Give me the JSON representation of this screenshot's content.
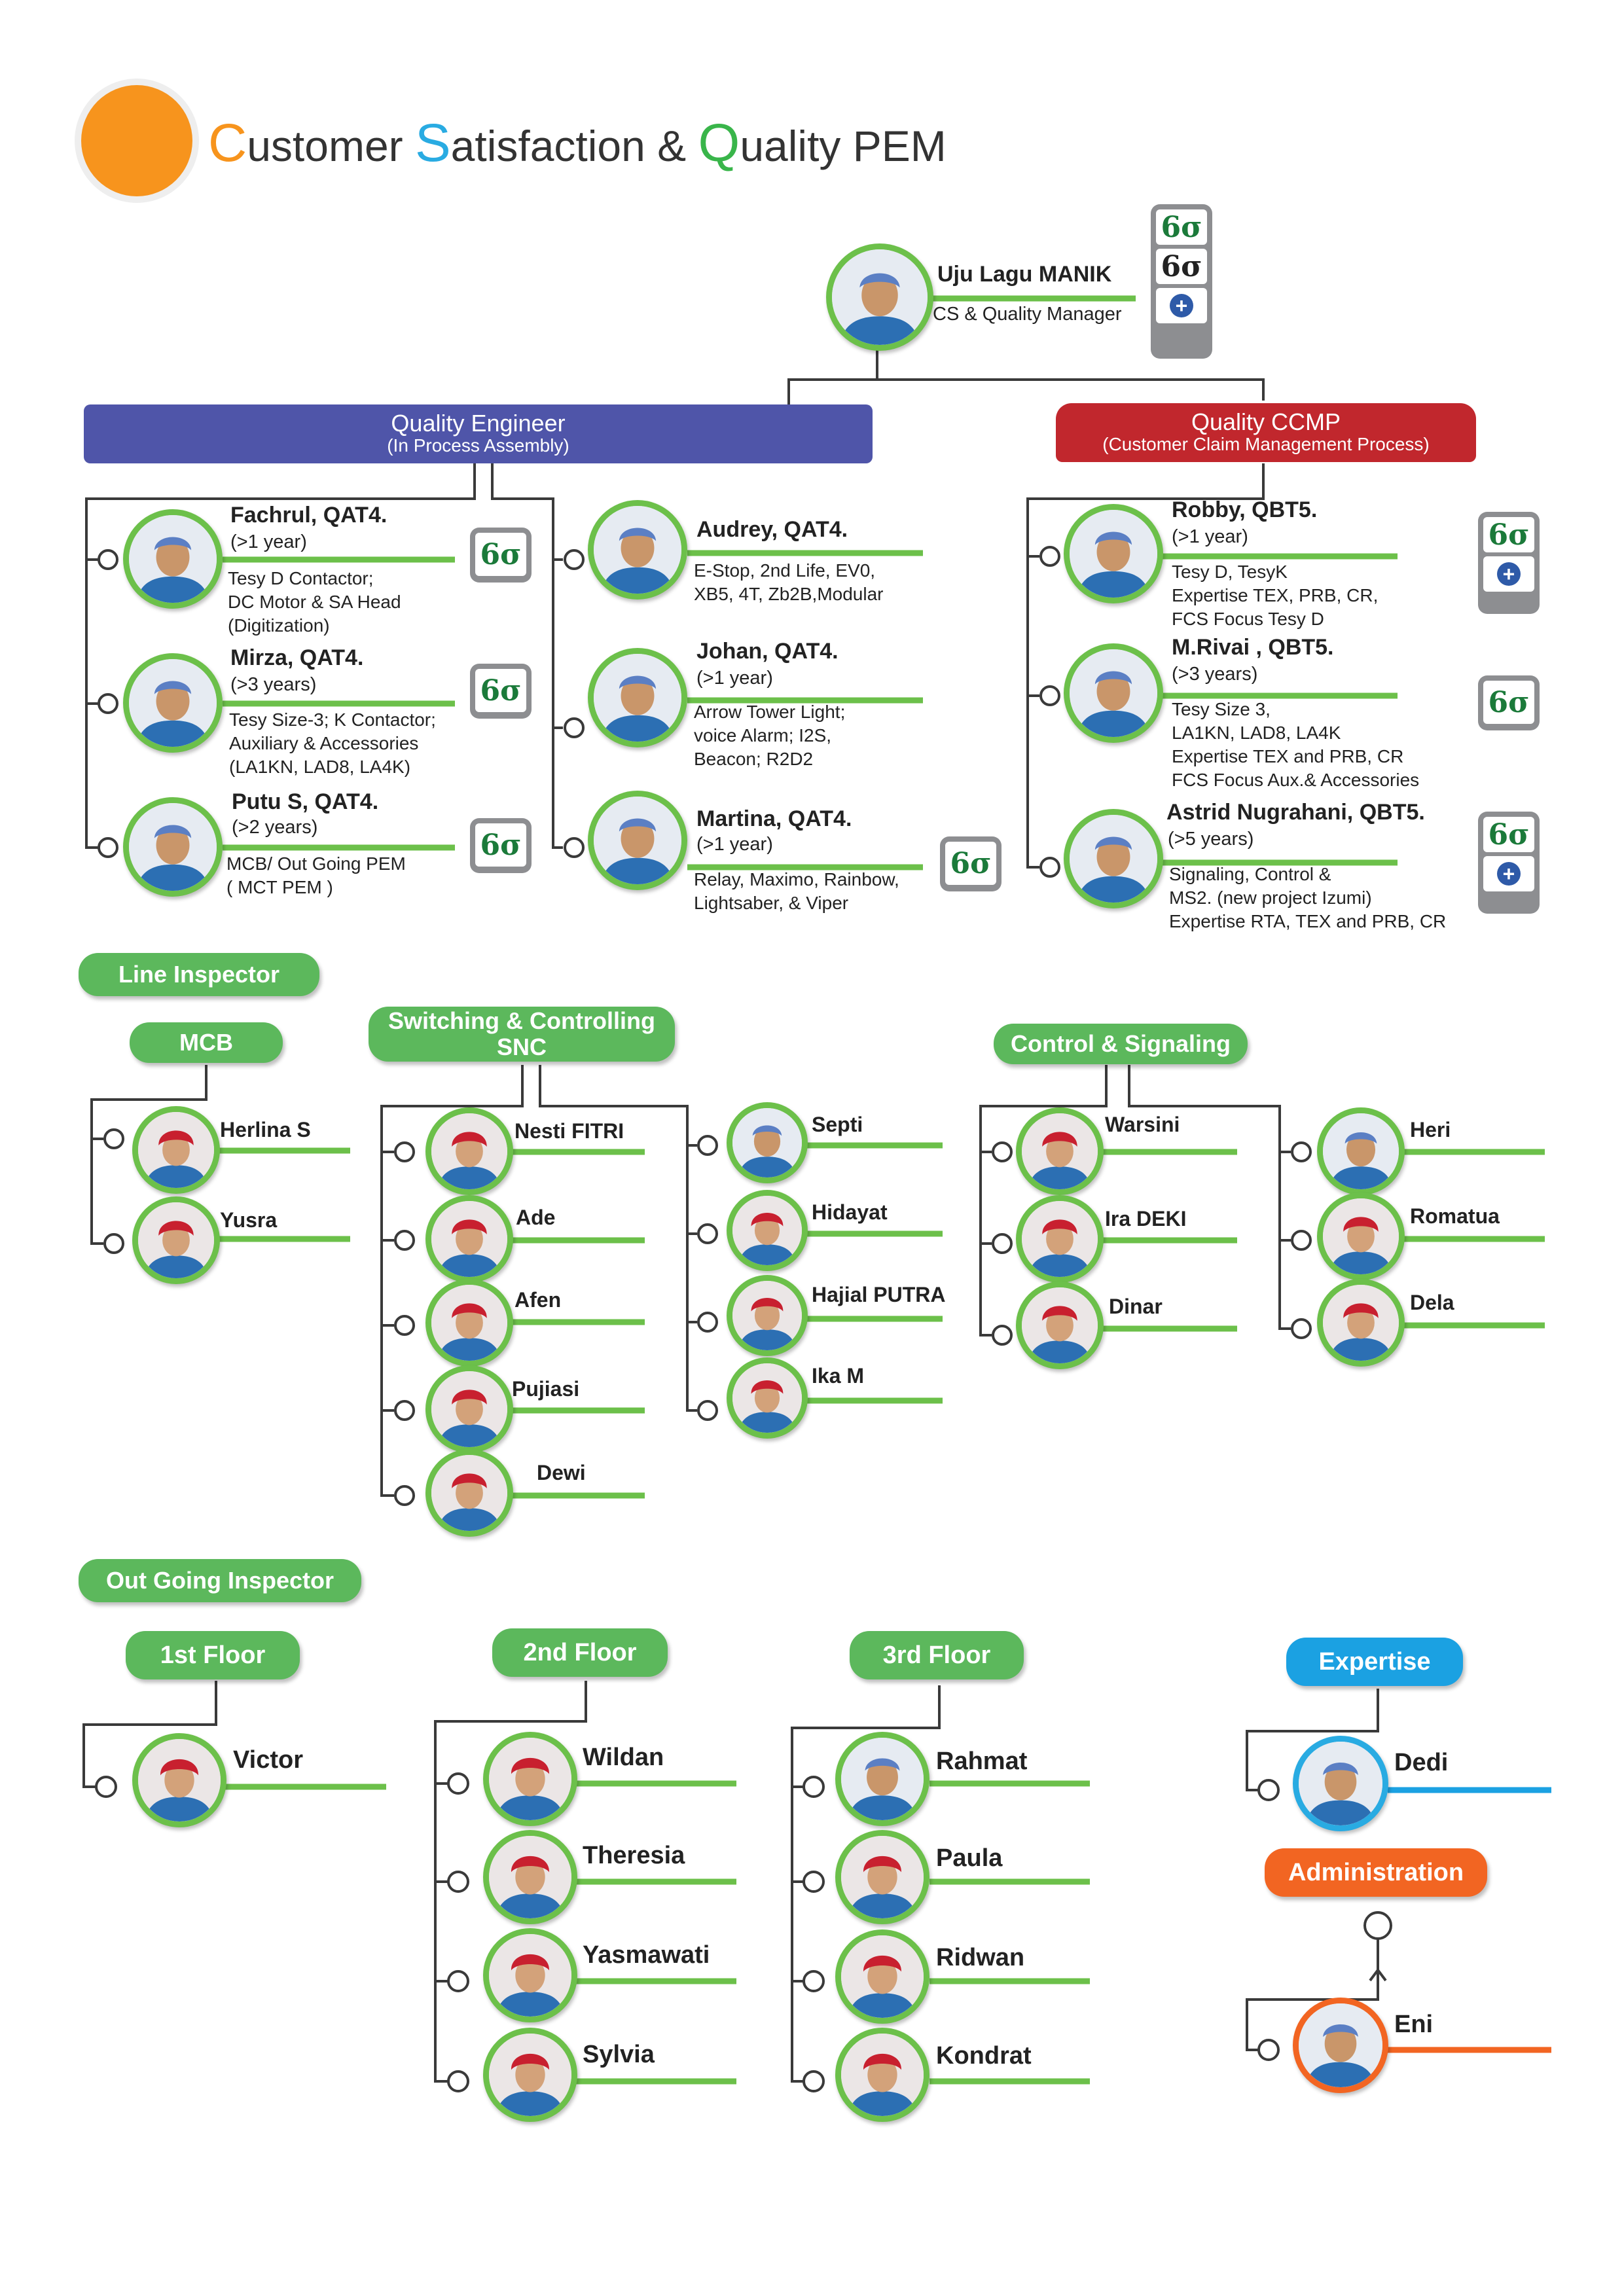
{
  "header": {
    "c1": "C",
    "t1": "ustomer ",
    "c2": "S",
    "t2": "atisfaction & ",
    "c3": "Q",
    "t3": "uality PEM"
  },
  "colors": {
    "green": "#6cc04a",
    "blue_bar": "#4f55a9",
    "red_bar": "#c1272d",
    "orange": "#f7941d",
    "sky": "#1ba1e2",
    "admin": "#f26522"
  },
  "badge": {
    "six_sigma": "6σ"
  },
  "manager": {
    "name": "Uju Lagu MANIK",
    "role": "CS & Quality Manager"
  },
  "quality_engineer": {
    "title": "Quality Engineer",
    "subtitle": "(In Process Assembly)",
    "members": [
      {
        "name": "Fachrul, QAT4.",
        "years": "(>1 year)",
        "desc": [
          "Tesy D Contactor;",
          "DC Motor & SA Head",
          "(Digitization)"
        ]
      },
      {
        "name": "Mirza, QAT4.",
        "years": "(>3 years)",
        "desc": [
          "Tesy Size-3; K Contactor;",
          "Auxiliary & Accessories",
          "(LA1KN, LAD8, LA4K)"
        ]
      },
      {
        "name": "Putu S, QAT4.",
        "years": "(>2 years)",
        "desc": [
          "MCB/ Out Going PEM",
          "( MCT PEM )"
        ]
      },
      {
        "name": "Audrey, QAT4.",
        "years": "",
        "desc": [
          "E-Stop, 2nd Life, EV0,",
          "XB5, 4T, Zb2B,Modular"
        ]
      },
      {
        "name": "Johan, QAT4.",
        "years": "(>1 year)",
        "desc": [
          "Arrow Tower Light;",
          "voice Alarm; I2S,",
          "Beacon; R2D2"
        ]
      },
      {
        "name": "Martina, QAT4.",
        "years": "(>1 year)",
        "desc": [
          "Relay, Maximo, Rainbow,",
          "Lightsaber, & Viper"
        ]
      }
    ]
  },
  "quality_ccmp": {
    "title": "Quality CCMP",
    "subtitle": "(Customer Claim Management Process)",
    "members": [
      {
        "name": "Robby, QBT5.",
        "years": "(>1 year)",
        "desc": [
          "Tesy D, TesyK",
          "Expertise TEX, PRB, CR,",
          "FCS Focus Tesy D"
        ]
      },
      {
        "name": "M.Rivai , QBT5.",
        "years": "(>3 years)",
        "desc": [
          "Tesy Size 3,",
          "LA1KN, LAD8, LA4K",
          "Expertise TEX and PRB, CR",
          "FCS Focus Aux.& Accessories"
        ]
      },
      {
        "name": "Astrid Nugrahani, QBT5.",
        "years": "(>5 years)",
        "desc": [
          "Signaling, Control &",
          "MS2. (new project Izumi)",
          "Expertise RTA, TEX and PRB, CR"
        ]
      }
    ]
  },
  "line_inspector": {
    "title": "Line Inspector",
    "mcb": {
      "title": "MCB",
      "members": [
        "Herlina S",
        "Yusra"
      ]
    },
    "snc": {
      "title1": "Switching & Controlling",
      "title2": "SNC",
      "left": [
        "Nesti FITRI",
        "Ade",
        "Afen",
        "Pujiasi",
        "Dewi"
      ],
      "right": [
        "Septi",
        "Hidayat",
        "Hajial PUTRA",
        "Ika M"
      ]
    },
    "cs": {
      "title": "Control & Signaling",
      "left": [
        "Warsini",
        "Ira DEKI",
        "Dinar"
      ],
      "right": [
        "Heri",
        "Romatua",
        "Dela"
      ]
    }
  },
  "outgoing": {
    "title": "Out Going Inspector",
    "floor1": {
      "title": "1st Floor",
      "members": [
        "Victor"
      ]
    },
    "floor2": {
      "title": "2nd Floor",
      "members": [
        "Wildan",
        "Theresia",
        "Yasmawati",
        "Sylvia"
      ]
    },
    "floor3": {
      "title": "3rd Floor",
      "members": [
        "Rahmat",
        "Paula",
        "Ridwan",
        "Kondrat"
      ]
    },
    "expertise": {
      "title": "Expertise",
      "members": [
        "Dedi"
      ]
    },
    "administration": {
      "title": "Administration",
      "members": [
        "Eni"
      ]
    }
  }
}
